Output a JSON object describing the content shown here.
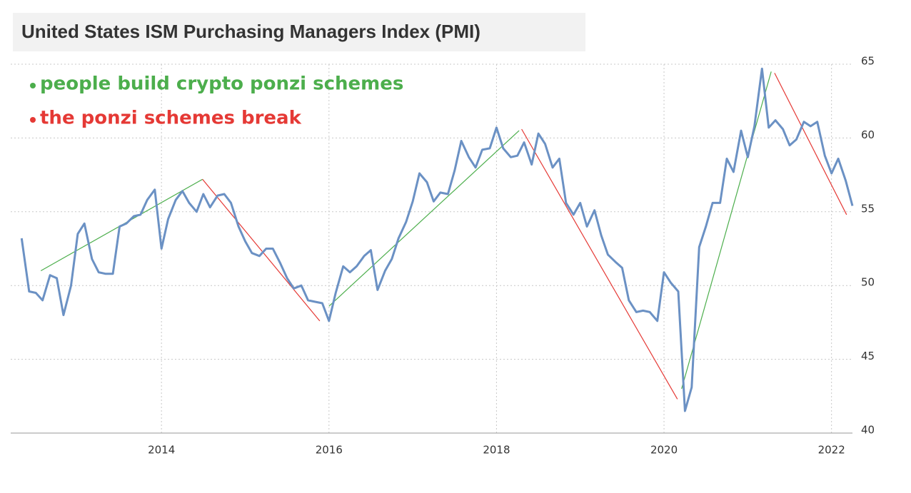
{
  "chart_data": {
    "type": "line",
    "title": "United States ISM Purchasing Managers Index (PMI)",
    "color": "#6b91c4",
    "x": [
      2012.33,
      2012.42,
      2012.5,
      2012.58,
      2012.67,
      2012.75,
      2012.83,
      2012.92,
      2013,
      2013.08,
      2013.17,
      2013.25,
      2013.33,
      2013.42,
      2013.5,
      2013.58,
      2013.67,
      2013.75,
      2013.83,
      2013.92,
      2014,
      2014.08,
      2014.17,
      2014.25,
      2014.33,
      2014.42,
      2014.5,
      2014.58,
      2014.67,
      2014.75,
      2014.83,
      2014.92,
      2015,
      2015.08,
      2015.17,
      2015.25,
      2015.33,
      2015.42,
      2015.5,
      2015.58,
      2015.67,
      2015.75,
      2015.83,
      2015.92,
      2016,
      2016.08,
      2016.17,
      2016.25,
      2016.33,
      2016.42,
      2016.5,
      2016.58,
      2016.67,
      2016.75,
      2016.83,
      2016.92,
      2017,
      2017.08,
      2017.17,
      2017.25,
      2017.33,
      2017.42,
      2017.5,
      2017.58,
      2017.67,
      2017.75,
      2017.83,
      2017.92,
      2018,
      2018.08,
      2018.17,
      2018.25,
      2018.33,
      2018.42,
      2018.5,
      2018.58,
      2018.67,
      2018.75,
      2018.83,
      2018.92,
      2019,
      2019.08,
      2019.17,
      2019.25,
      2019.33,
      2019.42,
      2019.5,
      2019.58,
      2019.67,
      2019.75,
      2019.83,
      2019.92,
      2020,
      2020.08,
      2020.17,
      2020.25,
      2020.33,
      2020.42,
      2020.5,
      2020.58,
      2020.67,
      2020.75,
      2020.83,
      2020.92,
      2021,
      2021.08,
      2021.17,
      2021.25,
      2021.33,
      2021.42,
      2021.5,
      2021.58,
      2021.67,
      2021.75,
      2021.83,
      2021.92,
      2022,
      2022.08,
      2022.17,
      2022.25
    ],
    "values": [
      53.2,
      49.6,
      49.5,
      49.0,
      50.7,
      50.5,
      48.0,
      50.0,
      53.5,
      54.2,
      51.8,
      50.9,
      50.8,
      50.8,
      54.0,
      54.2,
      54.7,
      54.8,
      55.8,
      56.5,
      52.5,
      54.5,
      55.8,
      56.4,
      55.6,
      55.0,
      56.2,
      55.3,
      56.1,
      56.2,
      55.6,
      54.0,
      53.0,
      52.2,
      52.0,
      52.5,
      52.5,
      51.5,
      50.5,
      49.8,
      50.0,
      49.0,
      48.9,
      48.8,
      47.6,
      49.5,
      51.3,
      50.9,
      51.3,
      52.0,
      52.4,
      49.7,
      51.0,
      51.8,
      53.2,
      54.3,
      55.7,
      57.6,
      57.0,
      55.7,
      56.3,
      56.2,
      57.8,
      59.8,
      58.7,
      58.0,
      59.2,
      59.3,
      60.7,
      59.3,
      58.7,
      58.8,
      59.7,
      58.2,
      60.3,
      59.6,
      58.0,
      58.6,
      55.6,
      54.8,
      55.6,
      54.0,
      55.1,
      53.4,
      52.1,
      51.6,
      51.2,
      49.0,
      48.2,
      48.3,
      48.2,
      47.6,
      50.9,
      50.2,
      49.6,
      41.5,
      43.1,
      52.6,
      54.0,
      55.6,
      55.6,
      58.6,
      57.7,
      60.5,
      58.7,
      60.8,
      64.7,
      60.7,
      61.2,
      60.6,
      59.5,
      59.9,
      61.1,
      60.8,
      61.1,
      58.8,
      57.6,
      58.6,
      57.1,
      55.4
    ],
    "annotations": [
      {
        "text": "people build crypto ponzi schemes",
        "color": "#4cae4c",
        "segments": [
          {
            "x": [
              2012.56,
              2014.49
            ],
            "values": [
              51.0,
              57.2
            ]
          },
          {
            "x": [
              2016.0,
              2018.27
            ],
            "values": [
              48.6,
              60.5
            ]
          },
          {
            "x": [
              2020.21,
              2021.28
            ],
            "values": [
              43.0,
              64.5
            ]
          }
        ]
      },
      {
        "text": "the ponzi schemes break",
        "color": "#e53935",
        "segments": [
          {
            "x": [
              2014.49,
              2015.89
            ],
            "values": [
              57.2,
              47.6
            ]
          },
          {
            "x": [
              2018.3,
              2020.16
            ],
            "values": [
              60.6,
              42.3
            ]
          },
          {
            "x": [
              2021.32,
              2022.18
            ],
            "values": [
              64.4,
              54.8
            ]
          }
        ]
      }
    ],
    "xlim": [
      2012.2,
      2022.25
    ],
    "xticks": [
      2014,
      2016,
      2018,
      2020,
      2022
    ],
    "ylim": [
      40,
      65
    ],
    "yticks": [
      40,
      45,
      50,
      55,
      60,
      65
    ],
    "grid": true
  }
}
